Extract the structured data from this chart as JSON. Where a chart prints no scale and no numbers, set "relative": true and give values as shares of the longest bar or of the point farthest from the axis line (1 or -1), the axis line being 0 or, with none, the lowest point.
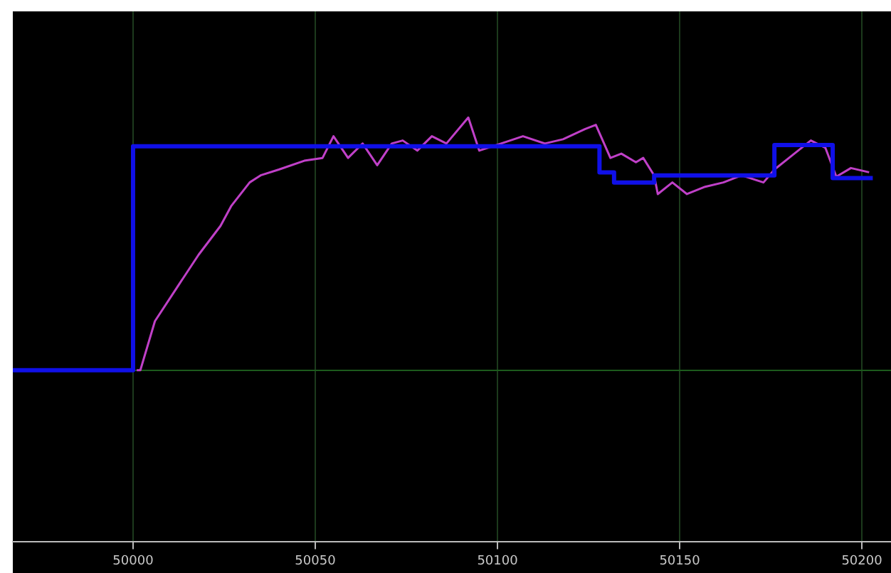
{
  "chart_data": {
    "type": "line",
    "relative": true,
    "grid": "x",
    "legend": false,
    "marker": "none",
    "line_style": "solid",
    "xlim": [
      49967,
      50208
    ],
    "xticks": [
      50000,
      50050,
      50100,
      50150,
      50200
    ],
    "series": [
      {
        "type": "step",
        "color": "#1010e8",
        "x": [
          49967,
          50000,
          50128,
          50132,
          50143,
          50176,
          50192,
          50203
        ],
        "values": [
          0,
          0.886,
          0.783,
          0.743,
          0.771,
          0.891,
          0.76,
          0.76
        ]
      },
      {
        "type": "line",
        "color": "#c040c8",
        "x": [
          50001,
          50002,
          50006,
          50012,
          50018,
          50024,
          50027,
          50032,
          50035,
          50040,
          50047,
          50052,
          50055,
          50059,
          50063,
          50067,
          50071,
          50074,
          50078,
          50082,
          50086,
          50092,
          50095,
          50101,
          50107,
          50113,
          50118,
          50124,
          50127,
          50131,
          50134,
          50138,
          50140,
          50143,
          50144,
          50148,
          50152,
          50157,
          50162,
          50167,
          50173,
          50176,
          50180,
          50186,
          50190,
          50193,
          50197,
          50202
        ],
        "values": [
          0,
          0,
          0.194,
          0.326,
          0.457,
          0.571,
          0.651,
          0.743,
          0.771,
          0.794,
          0.829,
          0.84,
          0.926,
          0.84,
          0.897,
          0.811,
          0.897,
          0.909,
          0.869,
          0.926,
          0.897,
          1,
          0.869,
          0.897,
          0.926,
          0.897,
          0.914,
          0.954,
          0.971,
          0.84,
          0.857,
          0.823,
          0.84,
          0.771,
          0.697,
          0.743,
          0.697,
          0.726,
          0.743,
          0.771,
          0.743,
          0.794,
          0.84,
          0.909,
          0.88,
          0.766,
          0.8,
          0.783
        ]
      }
    ]
  }
}
